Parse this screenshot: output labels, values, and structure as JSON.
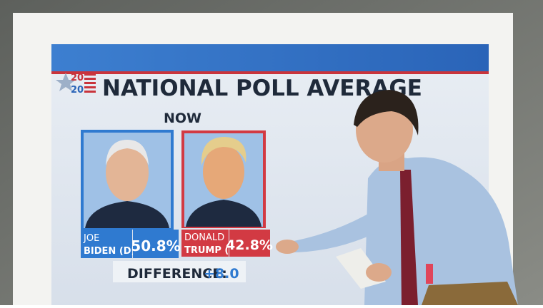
{
  "header": {
    "logo_top": "20",
    "logo_bottom": "20",
    "title": "NATIONAL POLL AVERAGE",
    "subtitle": "NOW"
  },
  "candidates": [
    {
      "first_name": "JOE",
      "last_name": "BIDEN (D)",
      "share": "50.8%"
    },
    {
      "first_name": "DONALD",
      "last_name": "TRUMP (R)",
      "share": "42.8%"
    }
  ],
  "difference": {
    "label": "DIFFERENCE:",
    "value": "+8.0"
  }
}
